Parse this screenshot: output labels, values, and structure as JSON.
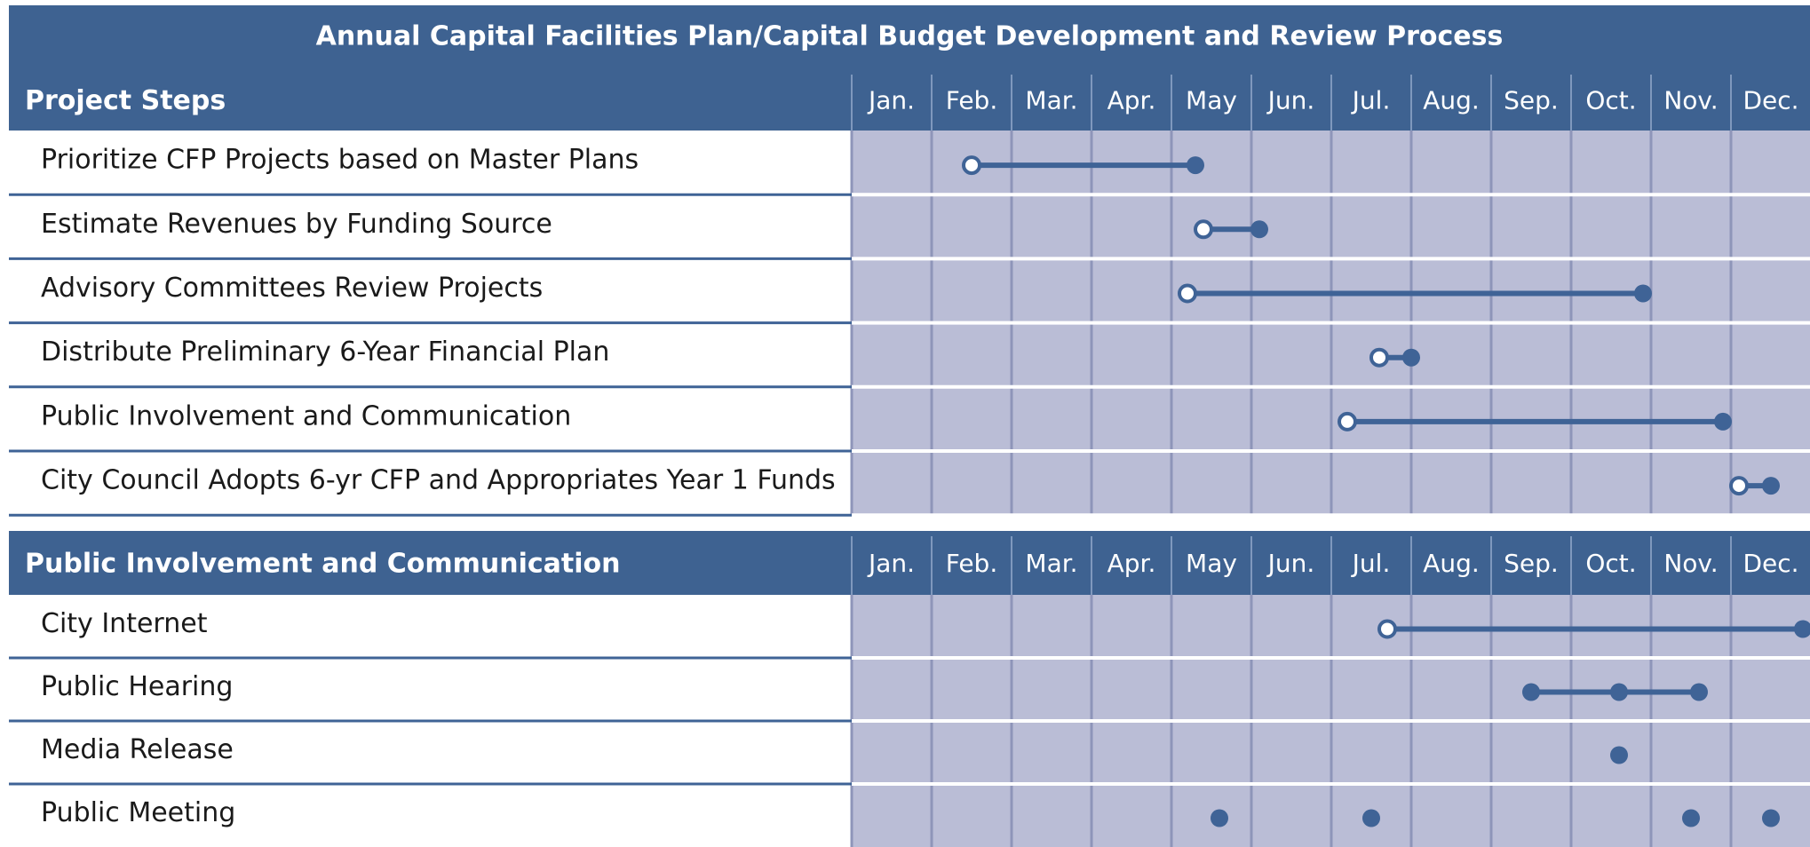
{
  "title": "Annual Capital Facilities Plan/Capital Budget Development and Review Process",
  "sections": [
    {
      "heading": "Project Steps",
      "months": [
        "Jan.",
        "Feb.",
        "Mar.",
        "Apr.",
        "May",
        "Jun.",
        "Jul.",
        "Aug.",
        "Sep.",
        "Oct.",
        "Nov.",
        "Dec."
      ],
      "rows": [
        {
          "label": "Prioritize CFP Projects based on Master Plans",
          "start": 1.5,
          "end": 4.3
        },
        {
          "label": "Estimate Revenues by Funding Source",
          "start": 4.4,
          "end": 5.1
        },
        {
          "label": "Advisory Committees Review Projects",
          "start": 4.2,
          "end": 9.9
        },
        {
          "label": "Distribute Preliminary 6-Year Financial Plan",
          "start": 6.6,
          "end": 7.0
        },
        {
          "label": "Public Involvement and Communication",
          "start": 6.2,
          "end": 10.9
        },
        {
          "label": "City Council Adopts 6-yr CFP and Appropriates Year 1 Funds",
          "start": 11.1,
          "end": 11.5
        }
      ]
    },
    {
      "heading": "Public Involvement  and Communication",
      "months": [
        "Jan.",
        "Feb.",
        "Mar.",
        "Apr.",
        "May",
        "Jun.",
        "Jul.",
        "Aug.",
        "Sep.",
        "Oct.",
        "Nov.",
        "Dec."
      ],
      "rows": [
        {
          "label": "City Internet",
          "start": 6.7,
          "end": 11.9
        },
        {
          "label": "Public Hearing",
          "points": [
            8.5,
            9.6,
            10.6
          ],
          "connected": true
        },
        {
          "label": "Media Release",
          "points": [
            9.6
          ]
        },
        {
          "label": "Public Meeting",
          "points": [
            4.6,
            6.5,
            10.5,
            11.5
          ]
        }
      ]
    }
  ]
}
